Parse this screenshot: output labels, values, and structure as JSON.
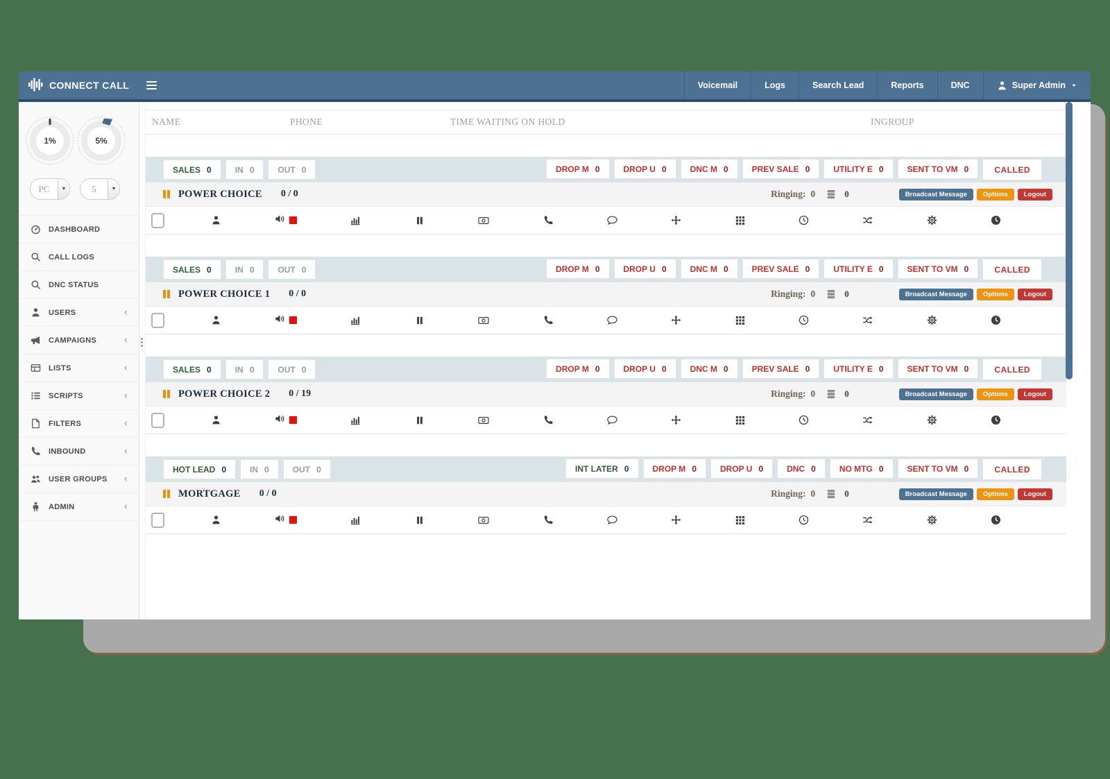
{
  "navbar": {
    "brand": "CONNECT CALL",
    "items": [
      "Voicemail",
      "Logs",
      "Search Lead",
      "Reports",
      "DNC"
    ],
    "user": {
      "label": "Super Admin"
    }
  },
  "sidebar": {
    "dials": [
      {
        "value": "1%"
      },
      {
        "value": "5%"
      }
    ],
    "selects": [
      {
        "value": "PC"
      },
      {
        "value": "5"
      }
    ],
    "items": [
      {
        "label": "DASHBOARD",
        "icon": "dashboard-icon",
        "expandable": false
      },
      {
        "label": "CALL LOGS",
        "icon": "search-icon",
        "expandable": false
      },
      {
        "label": "DNC STATUS",
        "icon": "search-icon",
        "expandable": false
      },
      {
        "label": "USERS",
        "icon": "user-icon",
        "expandable": true
      },
      {
        "label": "CAMPAIGNS",
        "icon": "megaphone-icon",
        "expandable": true
      },
      {
        "label": "LISTS",
        "icon": "table-icon",
        "expandable": true
      },
      {
        "label": "SCRIPTS",
        "icon": "list-icon",
        "expandable": true
      },
      {
        "label": "FILTERS",
        "icon": "file-icon",
        "expandable": true
      },
      {
        "label": "INBOUND",
        "icon": "phone-icon",
        "expandable": true
      },
      {
        "label": "USER GROUPS",
        "icon": "users-icon",
        "expandable": true
      },
      {
        "label": "ADMIN",
        "icon": "admin-icon",
        "expandable": true
      }
    ]
  },
  "table": {
    "columns": [
      "NAME",
      "PHONE",
      "TIME WAITING ON HOLD",
      "INGROUP"
    ]
  },
  "section_buttons": {
    "broadcast": "Broadcast Message",
    "options": "Options",
    "logout": "Logout"
  },
  "agent_row_icons": [
    "user-icon",
    "volume-stop",
    "chart-icon",
    "pause-icon",
    "money-icon",
    "phone-icon",
    "comment-icon",
    "move-icon",
    "grid-icon",
    "clock-icon",
    "shuffle-icon",
    "gear-icon",
    "history-icon"
  ],
  "campaigns": [
    {
      "name": "POWER CHOICE",
      "count": "0 / 0",
      "ringing_label": "Ringing:",
      "ringing_value": "0",
      "queue_value": "0",
      "stats_left": [
        {
          "label": "SALES",
          "value": "0",
          "type": "primary"
        },
        {
          "label": "IN",
          "value": "0",
          "type": "muted"
        },
        {
          "label": "OUT",
          "value": "0",
          "type": "muted"
        }
      ],
      "stats_right": [
        {
          "label": "DROP M",
          "value": "0",
          "type": "danger"
        },
        {
          "label": "DROP U",
          "value": "0",
          "type": "danger"
        },
        {
          "label": "DNC M",
          "value": "0",
          "type": "danger"
        },
        {
          "label": "PREV SALE",
          "value": "0",
          "type": "danger"
        },
        {
          "label": "UTILITY E",
          "value": "0",
          "type": "danger"
        },
        {
          "label": "SENT TO VM",
          "value": "0",
          "type": "danger"
        },
        {
          "label": "CALLED",
          "value": "",
          "type": "called"
        }
      ]
    },
    {
      "name": "POWER CHOICE 1",
      "count": "0 / 0",
      "ringing_label": "Ringing:",
      "ringing_value": "0",
      "queue_value": "0",
      "stats_left": [
        {
          "label": "SALES",
          "value": "0",
          "type": "primary"
        },
        {
          "label": "IN",
          "value": "0",
          "type": "muted"
        },
        {
          "label": "OUT",
          "value": "0",
          "type": "muted"
        }
      ],
      "stats_right": [
        {
          "label": "DROP M",
          "value": "0",
          "type": "danger"
        },
        {
          "label": "DROP U",
          "value": "0",
          "type": "danger"
        },
        {
          "label": "DNC M",
          "value": "0",
          "type": "danger"
        },
        {
          "label": "PREV SALE",
          "value": "0",
          "type": "danger"
        },
        {
          "label": "UTILITY E",
          "value": "0",
          "type": "danger"
        },
        {
          "label": "SENT TO VM",
          "value": "0",
          "type": "danger"
        },
        {
          "label": "CALLED",
          "value": "",
          "type": "called"
        }
      ]
    },
    {
      "name": "POWER CHOICE 2",
      "count": "0 / 19",
      "ringing_label": "Ringing:",
      "ringing_value": "0",
      "queue_value": "0",
      "stats_left": [
        {
          "label": "SALES",
          "value": "0",
          "type": "primary"
        },
        {
          "label": "IN",
          "value": "0",
          "type": "muted"
        },
        {
          "label": "OUT",
          "value": "0",
          "type": "muted"
        }
      ],
      "stats_right": [
        {
          "label": "DROP M",
          "value": "0",
          "type": "danger"
        },
        {
          "label": "DROP U",
          "value": "0",
          "type": "danger"
        },
        {
          "label": "DNC M",
          "value": "0",
          "type": "danger"
        },
        {
          "label": "PREV SALE",
          "value": "0",
          "type": "danger"
        },
        {
          "label": "UTILITY E",
          "value": "0",
          "type": "danger"
        },
        {
          "label": "SENT TO VM",
          "value": "0",
          "type": "danger"
        },
        {
          "label": "CALLED",
          "value": "",
          "type": "called"
        }
      ]
    },
    {
      "name": "MORTGAGE",
      "count": "0 / 0",
      "ringing_label": "Ringing:",
      "ringing_value": "0",
      "queue_value": "0",
      "stats_left": [
        {
          "label": "HOT LEAD",
          "value": "0",
          "type": "primary"
        },
        {
          "label": "IN",
          "value": "0",
          "type": "muted"
        },
        {
          "label": "OUT",
          "value": "0",
          "type": "muted"
        }
      ],
      "stats_right": [
        {
          "label": "INT LATER",
          "value": "0",
          "type": "primary"
        },
        {
          "label": "DROP M",
          "value": "0",
          "type": "danger"
        },
        {
          "label": "DROP U",
          "value": "0",
          "type": "danger"
        },
        {
          "label": "DNC",
          "value": "0",
          "type": "danger"
        },
        {
          "label": "NO MTG",
          "value": "0",
          "type": "danger"
        },
        {
          "label": "SENT TO VM",
          "value": "0",
          "type": "danger"
        },
        {
          "label": "CALLED",
          "value": "",
          "type": "called"
        }
      ]
    }
  ]
}
